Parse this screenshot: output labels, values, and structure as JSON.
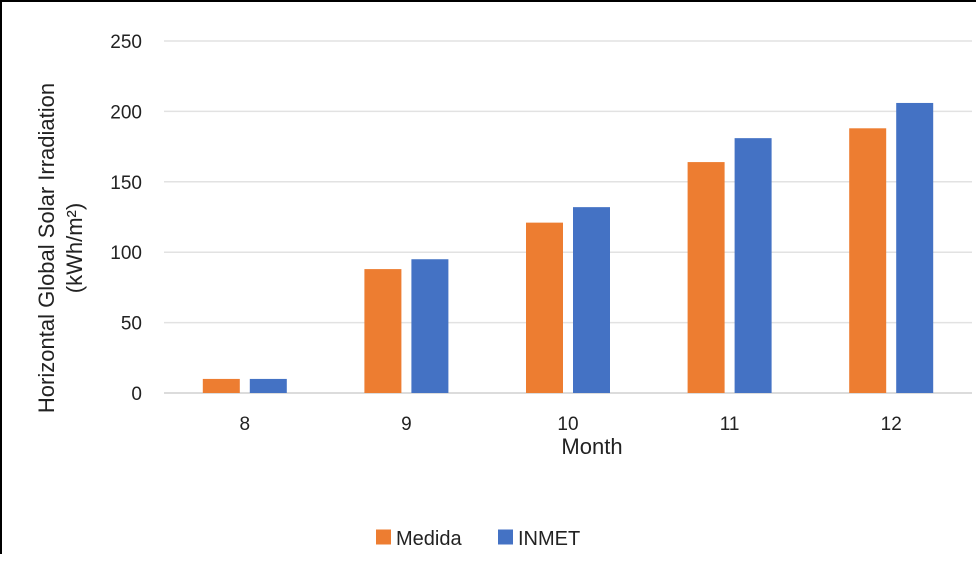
{
  "chart_data": {
    "type": "bar",
    "title": "",
    "xlabel": "Month",
    "ylabel_lines": [
      "Horizontal Global Solar Irradiation",
      "(kWh/m²)"
    ],
    "categories": [
      "8",
      "9",
      "10",
      "11",
      "12"
    ],
    "series": [
      {
        "name": "Medida",
        "color": "#ED7D31",
        "values": [
          10,
          88,
          121,
          164,
          188
        ]
      },
      {
        "name": "INMET",
        "color": "#4472C4",
        "values": [
          10,
          95,
          132,
          181,
          206
        ]
      }
    ],
    "ylim": [
      0,
      250
    ],
    "yticks": [
      "0",
      "50",
      "100",
      "150",
      "200",
      "250"
    ],
    "grid": true,
    "legend_position": "bottom-center"
  }
}
